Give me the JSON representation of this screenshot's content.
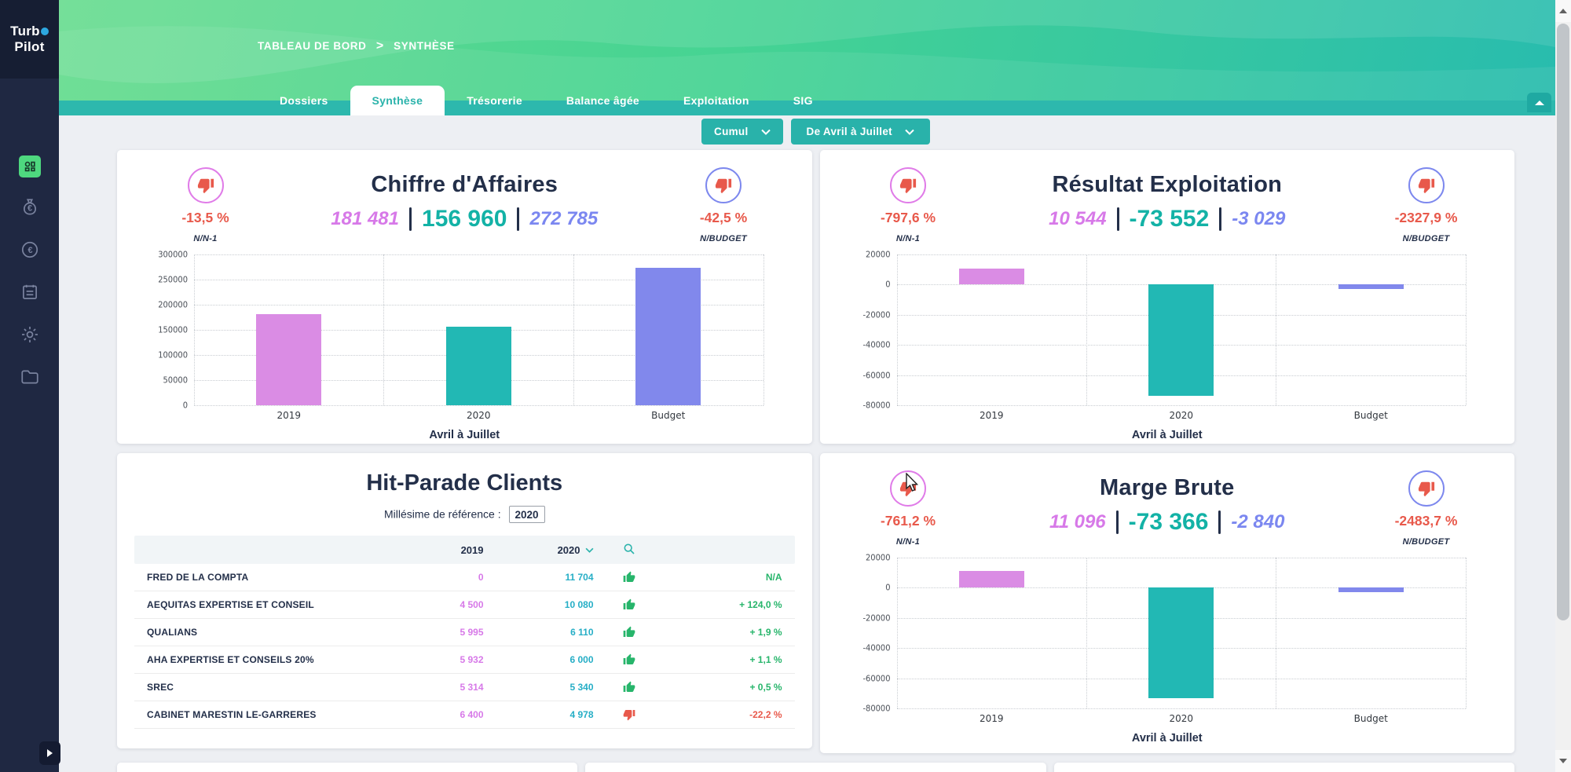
{
  "app": {
    "name_line1": "Turb",
    "name_line2": "Pilot"
  },
  "sidebar": {
    "items": [
      {
        "name": "dashboard",
        "active": true
      },
      {
        "name": "money-bag",
        "active": false
      },
      {
        "name": "euro-coin",
        "active": false
      },
      {
        "name": "report",
        "active": false
      },
      {
        "name": "settings",
        "active": false
      },
      {
        "name": "folder",
        "active": false
      }
    ]
  },
  "header": {
    "breadcrumb": {
      "parent": "TABLEAU DE BORD",
      "separator": ">",
      "current": "SYNTHÈSE"
    },
    "tabs": [
      {
        "label": "Dossiers",
        "active": false
      },
      {
        "label": "Synthèse",
        "active": true
      },
      {
        "label": "Trésorerie",
        "active": false
      },
      {
        "label": "Balance âgée",
        "active": false
      },
      {
        "label": "Exploitation",
        "active": false
      },
      {
        "label": "SIG",
        "active": false
      }
    ]
  },
  "filters": {
    "cumul": {
      "label": "Cumul"
    },
    "period": {
      "label": "De Avril à Juillet"
    }
  },
  "colors": {
    "accent_teal": "#29b2aa",
    "pink": "#d779e8",
    "teal_value": "#13b2a6",
    "purple": "#7b87f0",
    "negative_red": "#e8594b",
    "positive_green": "#27b56b",
    "sidebar_navy": "#1f2842"
  },
  "cards": {
    "chiffre_affaires": {
      "title": "Chiffre d'Affaires",
      "kpi_left": {
        "value": "-13,5 %",
        "caption": "N/N-1"
      },
      "kpi_right": {
        "value": "-42,5 %",
        "caption": "N/BUDGET"
      },
      "values": {
        "previous": "181 481",
        "current": "156 960",
        "budget": "272 785"
      }
    },
    "resultat_exploitation": {
      "title": "Résultat Exploitation",
      "kpi_left": {
        "value": "-797,6 %",
        "caption": "N/N-1"
      },
      "kpi_right": {
        "value": "-2327,9 %",
        "caption": "N/BUDGET"
      },
      "values": {
        "previous": "10 544",
        "current": "-73 552",
        "budget": "-3 029"
      }
    },
    "marge_brute": {
      "title": "Marge Brute",
      "kpi_left": {
        "value": "-761,2 %",
        "caption": "N/N-1"
      },
      "kpi_right": {
        "value": "-2483,7 %",
        "caption": "N/BUDGET"
      },
      "values": {
        "previous": "11 096",
        "current": "-73 366",
        "budget": "-2 840"
      }
    },
    "hit_parade": {
      "title": "Hit-Parade Clients",
      "reference_label": "Millésime de référence :",
      "reference_value": "2020",
      "col_2019": "2019",
      "col_2020": "2020",
      "rows": [
        {
          "name": "FRED DE LA COMPTA",
          "y2019": "0",
          "y2020": "11 704",
          "trend": "up",
          "change": "N/A",
          "change_positive": true
        },
        {
          "name": "AEQUITAS EXPERTISE ET CONSEIL",
          "y2019": "4 500",
          "y2020": "10 080",
          "trend": "up",
          "change": "+ 124,0 %",
          "change_positive": true
        },
        {
          "name": "QUALIANS",
          "y2019": "5 995",
          "y2020": "6 110",
          "trend": "up",
          "change": "+ 1,9 %",
          "change_positive": true
        },
        {
          "name": "AHA EXPERTISE ET CONSEILS 20%",
          "y2019": "5 932",
          "y2020": "6 000",
          "trend": "up",
          "change": "+ 1,1 %",
          "change_positive": true
        },
        {
          "name": "SREC",
          "y2019": "5 314",
          "y2020": "5 340",
          "trend": "up",
          "change": "+ 0,5 %",
          "change_positive": true
        },
        {
          "name": "CABINET MARESTIN LE-GARRERES",
          "y2019": "6 400",
          "y2020": "4 978",
          "trend": "down",
          "change": "-22,2 %",
          "change_positive": false
        }
      ]
    }
  },
  "chart_data": [
    {
      "type": "bar",
      "title": "Chiffre d'Affaires",
      "categories": [
        "2019",
        "2020",
        "Budget"
      ],
      "values": [
        181481,
        156960,
        272785
      ],
      "colors": [
        "#da8ce4",
        "#22b8b4",
        "#8188ec"
      ],
      "xlabel": "Avril à Juillet",
      "ylabel": "",
      "ylim": [
        0,
        300000
      ],
      "yticks": [
        300000,
        250000,
        200000,
        150000,
        100000,
        50000,
        0
      ],
      "grid": "dotted",
      "legend": "none"
    },
    {
      "type": "bar",
      "title": "Résultat Exploitation",
      "categories": [
        "2019",
        "2020",
        "Budget"
      ],
      "values": [
        10544,
        -73552,
        -3029
      ],
      "colors": [
        "#da8ce4",
        "#22b8b4",
        "#8188ec"
      ],
      "xlabel": "Avril à Juillet",
      "ylabel": "",
      "ylim": [
        -80000,
        20000
      ],
      "yticks": [
        20000,
        0,
        -20000,
        -40000,
        -60000,
        -80000
      ],
      "grid": "dotted",
      "legend": "none"
    },
    {
      "type": "bar",
      "title": "Marge Brute",
      "categories": [
        "2019",
        "2020",
        "Budget"
      ],
      "values": [
        11096,
        -73366,
        -2840
      ],
      "colors": [
        "#da8ce4",
        "#22b8b4",
        "#8188ec"
      ],
      "xlabel": "Avril à Juillet",
      "ylabel": "",
      "ylim": [
        -80000,
        20000
      ],
      "yticks": [
        20000,
        0,
        -20000,
        -40000,
        -60000,
        -80000
      ],
      "grid": "dotted",
      "legend": "none"
    }
  ]
}
